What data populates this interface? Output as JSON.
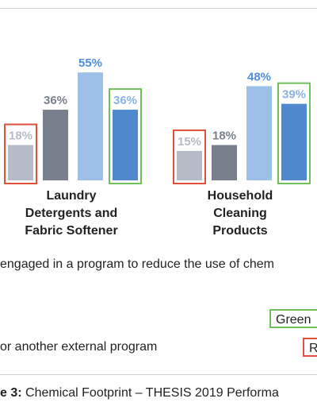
{
  "chart_data": {
    "type": "bar",
    "categories": [
      "Laundry Detergents and Fabric Softener",
      "Household Cleaning Products"
    ],
    "category_lines": [
      [
        "Laundry",
        "Detergents and",
        "Fabric Softener"
      ],
      [
        "Household",
        "Cleaning",
        "Products"
      ]
    ],
    "series": [
      {
        "values": [
          18,
          15
        ],
        "color": "#b5bcc6",
        "label_color": "#b5bcc6",
        "boxed": "red"
      },
      {
        "values": [
          36,
          18
        ],
        "color": "#77808c",
        "label_color": "#77808c",
        "boxed": null
      },
      {
        "values": [
          55,
          48
        ],
        "color": "#9dc0e8",
        "label_color": "#4d8fd6",
        "boxed": null
      },
      {
        "values": [
          36,
          39
        ],
        "color": "#4f88cc",
        "label_color": "#8ab4e6",
        "boxed": "green"
      }
    ],
    "value_labels": [
      [
        "18%",
        "15%"
      ],
      [
        "36%",
        "18%"
      ],
      [
        "55%",
        "48%"
      ],
      [
        "36%",
        "39%"
      ]
    ],
    "ylim": [
      0,
      60
    ],
    "grid": false
  },
  "note_line_1": "engaged in a program to reduce the use of chem",
  "note_line_2": "or another external program",
  "legend": {
    "green": "Green",
    "red": "R"
  },
  "caption": {
    "prefix": "e 3:",
    "text": " Chemical Footprint – THESIS 2019 Performa"
  },
  "colors": {
    "green_box": "#6fbf5a",
    "red_box": "#e0503a"
  }
}
